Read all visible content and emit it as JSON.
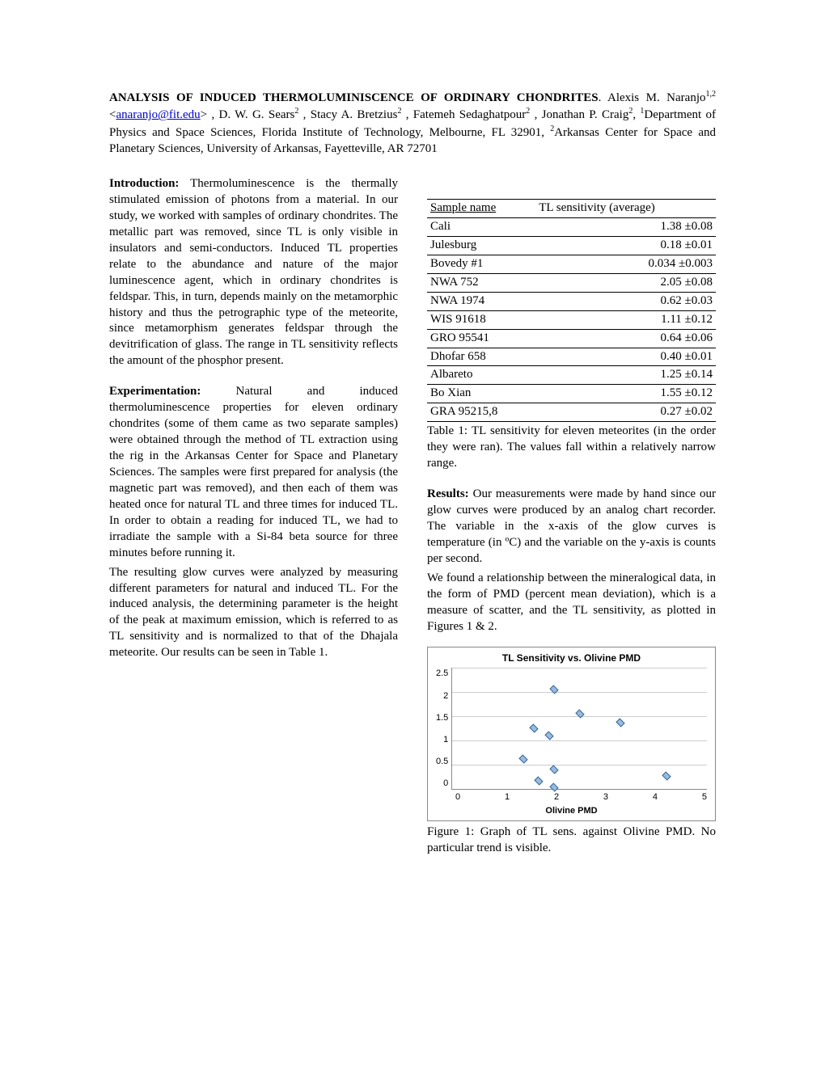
{
  "header": {
    "title": "ANALYSIS OF INDUCED THERMOLUMINISCENCE OF ORDINARY CHONDRITES",
    "authors_html": "Alexis M. Naranjo",
    "sup12": "1,2",
    "email": "anaranjo@fit.edu",
    "a2": ", D. W. G. Sears",
    "a3": ", Stacy A. Bretzius",
    "a4": ", Fatemeh Sedaghatpour",
    "a5": ", Jonathan P. Craig",
    "sup2": "2",
    "aff1": "Department of Physics and Space Sciences, Florida Institute of Technology, Melbourne, FL 32901, ",
    "sup1": "1",
    "aff2": "Arkansas Center for Space and Planetary Sciences, University of Arkansas, Fayetteville, AR 72701"
  },
  "left": {
    "intro_head": "Introduction:",
    "intro": " Thermoluminescence is the thermally stimulated emission of photons from a material. In our study, we worked with samples of ordinary chondrites. The metallic part was removed, since TL is only visible in insulators and semi-conductors. Induced TL properties relate to the abundance and nature of the major luminescence agent, which in ordinary chondrites is feldspar. This, in turn, depends mainly on the metamorphic history and thus the petrographic type of the meteorite, since metamorphism generates feldspar through the devitrification of glass.  The range in TL sensitivity reflects the amount of the phosphor present.",
    "exp_head": "Experimentation:",
    "exp1": " Natural and induced thermoluminescence properties for eleven ordinary chondrites (some of them came as two separate samples) were obtained through the method of TL extraction using the rig in the Arkansas Center for Space and Planetary Sciences. The samples were first prepared for analysis (the magnetic part was removed), and then each of them was heated once for natural TL and three times for induced TL. In order to obtain a reading for induced TL, we had to irradiate the sample with a Si-84 beta source for three minutes before running it.",
    "exp2": "The resulting glow curves were analyzed by measuring different parameters for natural and induced TL. For the induced analysis, the determining parameter is the height of the peak at maximum emission, which is referred to as TL sensitivity and is normalized to that of the Dhajala meteorite. Our results can be seen in Table 1."
  },
  "table": {
    "h1": "Sample name",
    "h2": "TL sensitivity (average)",
    "rows": [
      [
        "Cali",
        "1.38 ±0.08"
      ],
      [
        "Julesburg",
        "0.18 ±0.01"
      ],
      [
        "Bovedy #1",
        "0.034 ±0.003"
      ],
      [
        "NWA 752",
        "2.05 ±0.08"
      ],
      [
        "NWA 1974",
        "0.62 ±0.03"
      ],
      [
        "WIS 91618",
        "1.11 ±0.12"
      ],
      [
        "GRO 95541",
        "0.64 ±0.06"
      ],
      [
        "Dhofar 658",
        "0.40 ±0.01"
      ],
      [
        "Albareto",
        "1.25 ±0.14"
      ],
      [
        "Bo Xian",
        "1.55 ±0.12"
      ],
      [
        "GRA 95215,8",
        "0.27 ±0.02"
      ]
    ],
    "caption": "Table 1: TL sensitivity for eleven meteorites (in the order they were ran). The values fall within a relatively narrow range."
  },
  "right": {
    "res_head": "Results:",
    "res1": " Our measurements were made by hand since our glow curves were produced by an analog chart recorder. The variable in the x-axis of the glow curves is temperature (in ºC) and the variable on the y-axis is counts per second.",
    "res2": "We found a relationship between the mineralogical data, in the form of PMD (percent mean deviation), which is a measure of scatter, and the TL sensitivity, as plotted in Figures 1 & 2."
  },
  "chart": {
    "title": "TL Sensitivity vs. Olivine PMD",
    "xlabel": "Olivine PMD",
    "xlim": [
      0,
      5
    ],
    "ylim": [
      0,
      2.5
    ],
    "yticks": [
      "2.5",
      "2",
      "1.5",
      "1",
      "0.5",
      "0"
    ],
    "xticks": [
      "0",
      "1",
      "2",
      "3",
      "4",
      "5"
    ],
    "grid_color": "#cccccc",
    "point_fill": "#99bbdd",
    "point_border": "#336699",
    "points": [
      {
        "x": 2.0,
        "y": 2.05
      },
      {
        "x": 2.5,
        "y": 1.55
      },
      {
        "x": 1.6,
        "y": 1.25
      },
      {
        "x": 3.3,
        "y": 1.38
      },
      {
        "x": 1.9,
        "y": 1.11
      },
      {
        "x": 1.4,
        "y": 0.62
      },
      {
        "x": 2.0,
        "y": 0.4
      },
      {
        "x": 4.2,
        "y": 0.27
      },
      {
        "x": 1.7,
        "y": 0.18
      },
      {
        "x": 2.0,
        "y": 0.034
      }
    ],
    "caption": "Figure 1: Graph of TL sens. against Olivine PMD. No particular trend is visible."
  }
}
